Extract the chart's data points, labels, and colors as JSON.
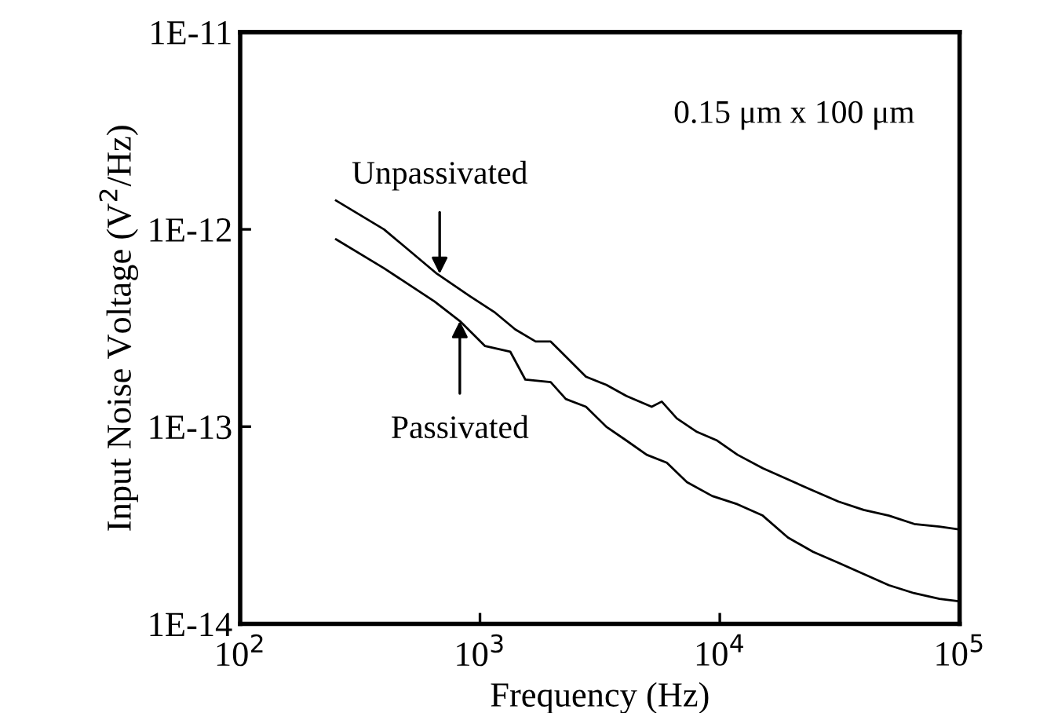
{
  "chart_data": {
    "type": "line",
    "xlabel": "Frequency (Hz)",
    "ylabel": "Input Noise Voltage (V$^{2}$/Hz)",
    "log": "xy",
    "xlim": [
      100,
      100000
    ],
    "ylim": [
      1e-14,
      1e-11
    ],
    "xticks": [
      {
        "value": 100,
        "label": "10$^{2}$"
      },
      {
        "value": 1000,
        "label": "10$^{3}$"
      },
      {
        "value": 10000,
        "label": "10$^{4}$"
      },
      {
        "value": 100000,
        "label": "10$^{5}$"
      }
    ],
    "yticks": [
      {
        "value": 1e-14,
        "label": "1E-14"
      },
      {
        "value": 1e-13,
        "label": "1E-13"
      },
      {
        "value": 1e-12,
        "label": "1E-12"
      },
      {
        "value": 1e-11,
        "label": "1E-11"
      }
    ],
    "grid": false,
    "legend": false,
    "line_style": "solid",
    "series": [
      {
        "color": "#000000",
        "x": [
          251,
          398,
          662,
          907,
          1157,
          1403,
          1706,
          1972,
          2173,
          2767,
          3359,
          4079,
          5200,
          5728,
          6622,
          8035,
          9749,
          11850,
          15100,
          19230,
          24490,
          31260,
          39810,
          50700,
          64710,
          82410,
          100000
        ],
        "values": [
          1.4e-12,
          1e-12,
          5.95e-13,
          4.59e-13,
          3.78e-13,
          3.11e-13,
          2.7e-13,
          2.7e-13,
          2.4e-13,
          1.79e-13,
          1.63e-13,
          1.43e-13,
          1.26e-13,
          1.34e-13,
          1.1e-13,
          9.4e-14,
          8.5e-14,
          7.2e-14,
          6.15e-14,
          5.4e-14,
          4.74e-14,
          4.17e-14,
          3.78e-14,
          3.54e-14,
          3.21e-14,
          3.11e-14,
          3.01e-14
        ]
      },
      {
        "color": "#000000",
        "x": [
          251,
          398,
          646,
          824,
          1050,
          1337,
          1546,
          1972,
          2280,
          2767,
          3359,
          4079,
          4955,
          6012,
          7295,
          9294,
          11850,
          15100,
          19230,
          24490,
          31260,
          39810,
          50700,
          64710,
          82410,
          100000
        ],
        "values": [
          8.9e-13,
          6.35e-13,
          4.31e-13,
          3.43e-13,
          2.56e-13,
          2.4e-13,
          1.73e-13,
          1.68e-13,
          1.38e-13,
          1.26e-13,
          1e-13,
          8.5e-14,
          7.2e-14,
          6.56e-14,
          5.23e-14,
          4.45e-14,
          4.04e-14,
          3.54e-14,
          2.74e-14,
          2.32e-14,
          2.04e-14,
          1.79e-14,
          1.57e-14,
          1.43e-14,
          1.34e-14,
          1.3e-14
        ]
      }
    ],
    "annotations": [
      {
        "text": "Unpassivated",
        "x": 679,
        "y": 5.95e-13
      },
      {
        "text": "Passivated",
        "x": 824,
        "y": 3.43e-13
      },
      "0.15 μm x 100 μm"
    ]
  }
}
